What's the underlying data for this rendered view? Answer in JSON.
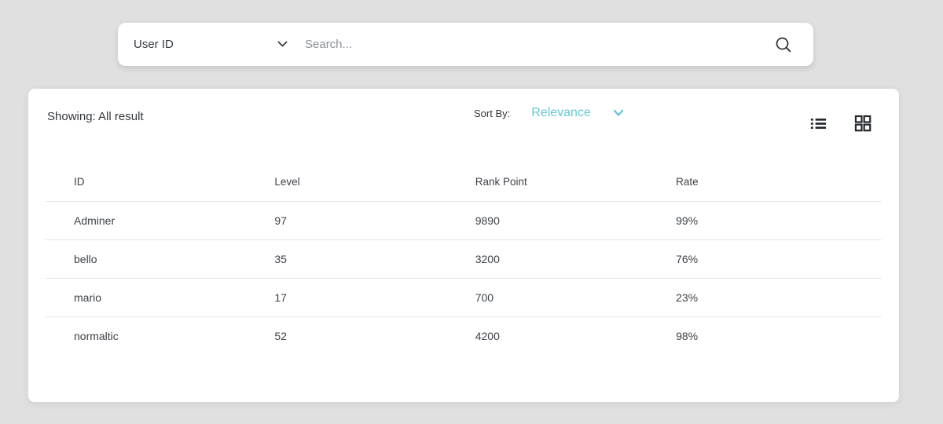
{
  "page": {
    "background_color": "#e0e0e0",
    "accent_color": "#64c7d6",
    "text_color": "#363b41"
  },
  "search": {
    "filter_selected": "User ID",
    "placeholder": "Search...",
    "dropdown_icon": "chevron-down-icon",
    "search_icon": "magnifier-icon"
  },
  "results_header": {
    "showing_label": "Showing: All result",
    "sort_by_label": "Sort By:",
    "sort_selected": "Relevance",
    "sort_dropdown_icon": "chevron-down-icon",
    "view_icons": [
      "list-view-icon",
      "grid-view-icon"
    ]
  },
  "table": {
    "columns": [
      "ID",
      "Level",
      "Rank Point",
      "Rate"
    ],
    "rows": [
      [
        "Adminer",
        "97",
        "9890",
        "99%"
      ],
      [
        "bello",
        "35",
        "3200",
        "76%"
      ],
      [
        "mario",
        "17",
        "700",
        "23%"
      ],
      [
        "normaltic",
        "52",
        "4200",
        "98%"
      ]
    ]
  }
}
